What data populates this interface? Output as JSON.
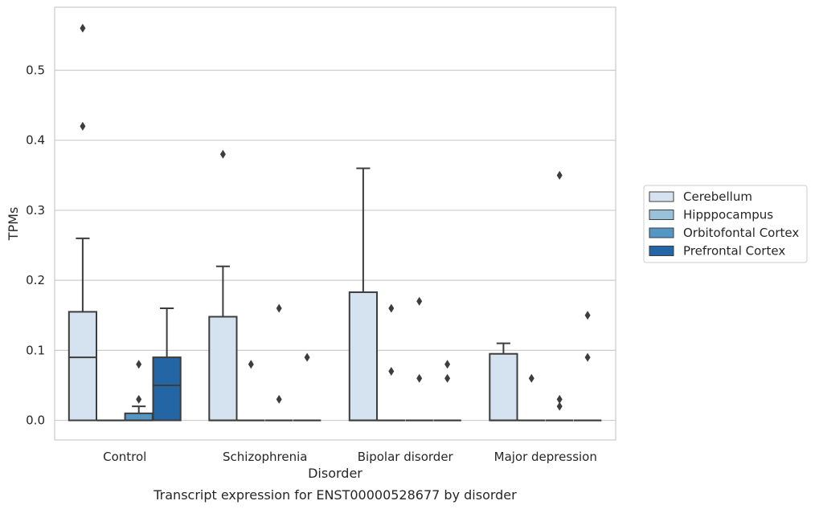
{
  "chart_data": {
    "type": "boxplot",
    "caption": "Transcript expression for ENST00000528677 by disorder",
    "xlabel": "Disorder",
    "ylabel": "TPMs",
    "ylim": [
      -0.028,
      0.59
    ],
    "yticks": [
      0.0,
      0.1,
      0.2,
      0.3,
      0.4,
      0.5
    ],
    "ytick_labels": [
      "0.0",
      "0.1",
      "0.2",
      "0.3",
      "0.4",
      "0.5"
    ],
    "grid": "horizontal",
    "legend_position": "right",
    "categories": [
      "Control",
      "Schizophrenia",
      "Bipolar disorder",
      "Major depression"
    ],
    "series": [
      {
        "name": "Cerebellum",
        "color": "#d5e3f1",
        "boxes": [
          {
            "q1": 0.0,
            "median": 0.09,
            "q3": 0.155,
            "whislo": 0.0,
            "whishi": 0.26,
            "fliers": [
              0.42,
              0.56
            ]
          },
          {
            "q1": 0.0,
            "median": 0.0,
            "q3": 0.148,
            "whislo": 0.0,
            "whishi": 0.22,
            "fliers": [
              0.38
            ]
          },
          {
            "q1": 0.0,
            "median": 0.0,
            "q3": 0.183,
            "whislo": 0.0,
            "whishi": 0.36,
            "fliers": []
          },
          {
            "q1": 0.0,
            "median": 0.0,
            "q3": 0.095,
            "whislo": 0.0,
            "whishi": 0.11,
            "fliers": []
          }
        ]
      },
      {
        "name": "Hipppocampus",
        "color": "#9ac1dc",
        "boxes": [
          {
            "q1": 0.0,
            "median": 0.0,
            "q3": 0.0,
            "whislo": 0.0,
            "whishi": 0.0,
            "fliers": []
          },
          {
            "q1": 0.0,
            "median": 0.0,
            "q3": 0.0,
            "whislo": 0.0,
            "whishi": 0.0,
            "fliers": [
              0.08
            ]
          },
          {
            "q1": 0.0,
            "median": 0.0,
            "q3": 0.0,
            "whislo": 0.0,
            "whishi": 0.0,
            "fliers": [
              0.07,
              0.16
            ]
          },
          {
            "q1": 0.0,
            "median": 0.0,
            "q3": 0.0,
            "whislo": 0.0,
            "whishi": 0.0,
            "fliers": [
              0.06
            ]
          }
        ]
      },
      {
        "name": "Orbitofontal Cortex",
        "color": "#5497c5",
        "boxes": [
          {
            "q1": 0.0,
            "median": 0.0,
            "q3": 0.01,
            "whislo": 0.0,
            "whishi": 0.02,
            "fliers": [
              0.03,
              0.08
            ]
          },
          {
            "q1": 0.0,
            "median": 0.0,
            "q3": 0.0,
            "whislo": 0.0,
            "whishi": 0.0,
            "fliers": [
              0.03,
              0.16
            ]
          },
          {
            "q1": 0.0,
            "median": 0.0,
            "q3": 0.0,
            "whislo": 0.0,
            "whishi": 0.0,
            "fliers": [
              0.06,
              0.17
            ]
          },
          {
            "q1": 0.0,
            "median": 0.0,
            "q3": 0.0,
            "whislo": 0.0,
            "whishi": 0.0,
            "fliers": [
              0.02,
              0.03,
              0.35
            ]
          }
        ]
      },
      {
        "name": "Prefrontal Cortex",
        "color": "#2465a6",
        "boxes": [
          {
            "q1": 0.0,
            "median": 0.05,
            "q3": 0.09,
            "whislo": 0.0,
            "whishi": 0.16,
            "fliers": []
          },
          {
            "q1": 0.0,
            "median": 0.0,
            "q3": 0.0,
            "whislo": 0.0,
            "whishi": 0.0,
            "fliers": [
              0.09
            ]
          },
          {
            "q1": 0.0,
            "median": 0.0,
            "q3": 0.0,
            "whislo": 0.0,
            "whishi": 0.0,
            "fliers": [
              0.06,
              0.08
            ]
          },
          {
            "q1": 0.0,
            "median": 0.0,
            "q3": 0.0,
            "whislo": 0.0,
            "whishi": 0.0,
            "fliers": [
              0.09,
              0.15
            ]
          }
        ]
      }
    ]
  }
}
